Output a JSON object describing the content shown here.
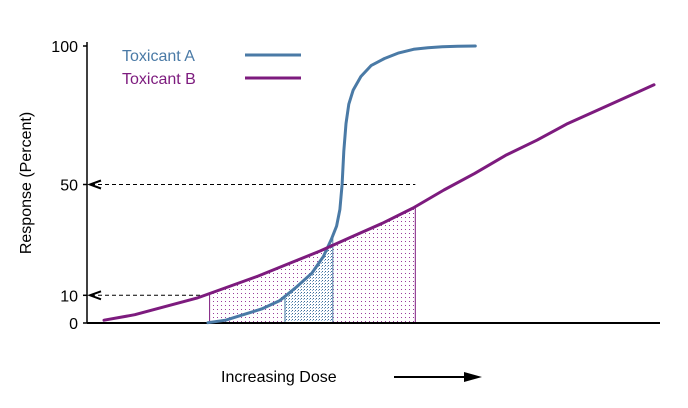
{
  "chart_data": {
    "type": "line",
    "title": "",
    "xlabel": "Increasing Dose",
    "ylabel": "Response (Percent)",
    "xlim": [
      0,
      100
    ],
    "ylim": [
      0,
      100
    ],
    "y_ticks": [
      {
        "value": 0,
        "label": "0"
      },
      {
        "value": 10,
        "label": "10"
      },
      {
        "value": 50,
        "label": "50"
      },
      {
        "value": 100,
        "label": "100"
      }
    ],
    "x_ticks": [],
    "grid": false,
    "legend": "top-left",
    "series": [
      {
        "name": "Toxicant A",
        "color": "#4a7aa6",
        "x": [
          18.9,
          22.1,
          25.3,
          28.6,
          31.9,
          35.0,
          37.8,
          39.9,
          41.3,
          42.3,
          42.9,
          43.3,
          43.6,
          44.0,
          44.5,
          45.3,
          46.7,
          48.6,
          51.0,
          53.6,
          56.3,
          58.9,
          61.5,
          64.3,
          67.5
        ],
        "y": [
          0.1,
          1,
          3,
          5,
          8,
          13,
          18,
          24,
          30,
          35,
          41,
          50,
          62,
          72,
          79,
          84,
          89,
          93,
          95.5,
          97.5,
          98.8,
          99.4,
          99.7,
          99.9,
          100
        ]
      },
      {
        "name": "Toxicant B",
        "color": "#7d1b7e",
        "x": [
          0,
          5.6,
          11.2,
          16.9,
          22.5,
          28.1,
          33.7,
          39.3,
          44.9,
          50.6,
          56.2,
          61.8,
          67.4,
          73.0,
          78.7,
          84.3,
          89.9,
          95.5,
          100
        ],
        "y": [
          1,
          3,
          6,
          9,
          13,
          17,
          21.5,
          26,
          31,
          36,
          41.5,
          48,
          54,
          60.5,
          66,
          72,
          77,
          82,
          86
        ]
      }
    ],
    "reference_lines": [
      {
        "label": "50",
        "value": 50
      },
      {
        "label": "10",
        "value": 10
      }
    ],
    "shaded_regions": [
      {
        "series": "Toxicant B",
        "x_from": 19.2,
        "x_to": 56.6,
        "fill": "dots"
      },
      {
        "series": "Toxicant A",
        "x_from": 32.9,
        "x_to": 41.6,
        "fill": "stipple"
      }
    ],
    "x_arrow": true
  }
}
